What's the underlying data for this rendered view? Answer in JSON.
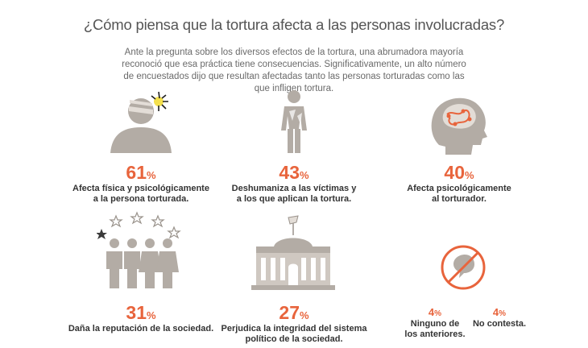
{
  "title": "¿Cómo piensa que la tortura afecta a las personas involucradas?",
  "intro": "Ante la pregunta sobre los diversos efectos de la tortura, una abrumadora mayoría reconoció que esa práctica tiene consecuencias. Significativamente, un alto número de encuestados dijo que resultan afectadas tanto las personas torturadas como las que infligen tortura.",
  "colors": {
    "accent": "#e8643c",
    "icon_gray": "#b3aca5",
    "text": "#333333"
  },
  "items": [
    {
      "value": "61",
      "unit": "%",
      "line1": "Afecta física y psicológicamente",
      "line2": "a la persona torturada.",
      "icon": "injured-person-icon"
    },
    {
      "value": "43",
      "unit": "%",
      "line1": "Deshumaniza a las víctimas y",
      "line2": "a los que aplican la tortura.",
      "icon": "dehumanized-figure-icon"
    },
    {
      "value": "40",
      "unit": "%",
      "line1": "Afecta psicológicamente",
      "line2": "al torturador.",
      "icon": "head-brain-icon"
    },
    {
      "value": "31",
      "unit": "%",
      "line1": "Daña la reputación de la sociedad.",
      "line2": "",
      "icon": "group-with-stars-icon"
    },
    {
      "value": "27",
      "unit": "%",
      "line1": "Perjudica la integridad del sistema",
      "line2": "político de la sociedad.",
      "icon": "government-building-icon"
    }
  ],
  "small_items": [
    {
      "value": "4",
      "unit": "%",
      "line1": "Ninguno de",
      "line2": "los anteriores."
    },
    {
      "value": "4",
      "unit": "%",
      "line1": "No contesta.",
      "line2": ""
    }
  ],
  "small_icon": "no-speech-icon"
}
